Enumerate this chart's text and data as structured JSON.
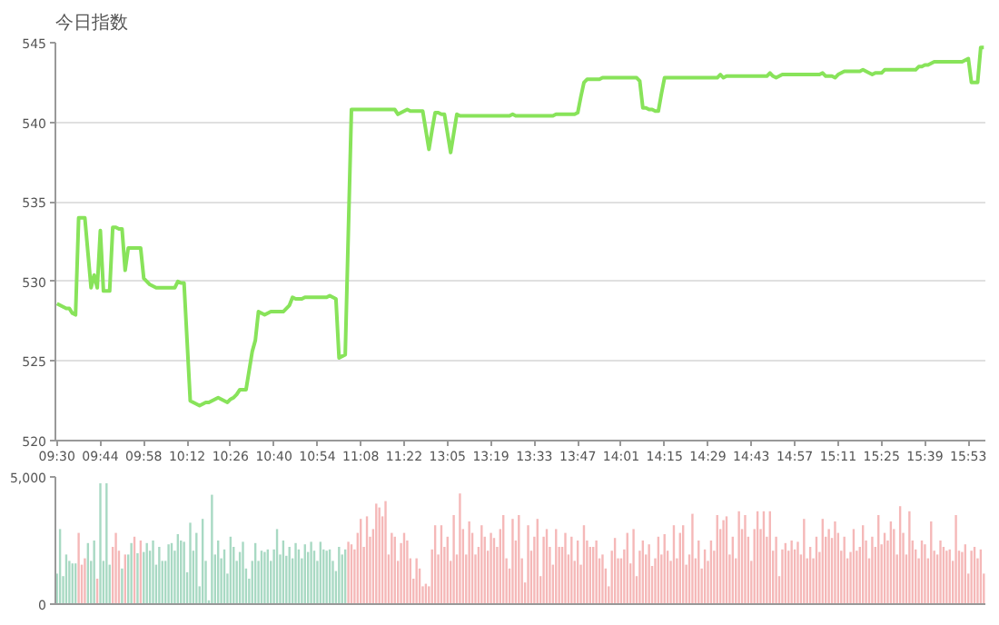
{
  "chart_data": [
    {
      "type": "line",
      "ylabel": "今日指数",
      "grid": "y",
      "categories": [
        "09:30",
        null,
        null,
        null,
        null,
        null,
        null,
        null,
        null,
        null,
        null,
        null,
        null,
        null,
        "09:44",
        null,
        null,
        null,
        null,
        null,
        null,
        null,
        null,
        null,
        null,
        null,
        null,
        null,
        "09:58",
        null,
        null,
        null,
        null,
        null,
        null,
        null,
        null,
        null,
        null,
        null,
        null,
        null,
        "10:12",
        null,
        null,
        null,
        null,
        null,
        null,
        null,
        null,
        null,
        null,
        null,
        null,
        null,
        "10:26",
        null,
        null,
        null,
        null,
        null,
        null,
        null,
        null,
        null,
        null,
        null,
        null,
        null,
        "10:40",
        null,
        null,
        null,
        null,
        null,
        null,
        null,
        null,
        null,
        null,
        null,
        null,
        null,
        "10:54",
        null,
        null,
        null,
        null,
        null,
        null,
        null,
        null,
        null,
        null,
        null,
        null,
        null,
        "11:08",
        null,
        null,
        null,
        null,
        null,
        null,
        null,
        null,
        null,
        null,
        null,
        null,
        null,
        "11:22",
        null,
        null,
        null,
        null,
        null,
        null,
        null,
        null,
        null,
        null,
        null,
        null,
        null,
        "13:05",
        null,
        null,
        null,
        null,
        null,
        null,
        null,
        null,
        null,
        null,
        null,
        null,
        null,
        "13:19",
        null,
        null,
        null,
        null,
        null,
        null,
        null,
        null,
        null,
        null,
        null,
        null,
        null,
        "13:33",
        null,
        null,
        null,
        null,
        null,
        null,
        null,
        null,
        null,
        null,
        null,
        null,
        null,
        "13:47",
        null,
        null,
        null,
        null,
        null,
        null,
        null,
        null,
        null,
        null,
        null,
        null,
        null,
        "14:01",
        null,
        null,
        null,
        null,
        null,
        null,
        null,
        null,
        null,
        null,
        null,
        null,
        null,
        "14:15",
        null,
        null,
        null,
        null,
        null,
        null,
        null,
        null,
        null,
        null,
        null,
        null,
        null,
        "14:29",
        null,
        null,
        null,
        null,
        null,
        null,
        null,
        null,
        null,
        null,
        null,
        null,
        null,
        "14:43",
        null,
        null,
        null,
        null,
        null,
        null,
        null,
        null,
        null,
        null,
        null,
        null,
        null,
        "14:57",
        null,
        null,
        null,
        null,
        null,
        null,
        null,
        null,
        null,
        null,
        null,
        null,
        null,
        "15:11",
        null,
        null,
        null,
        null,
        null,
        null,
        null,
        null,
        null,
        null,
        null,
        null,
        null,
        "15:25",
        null,
        null,
        null,
        null,
        null,
        null,
        null,
        null,
        null,
        null,
        null,
        null,
        null,
        "15:39",
        null,
        null,
        null,
        null,
        null,
        null,
        null,
        null,
        null,
        null,
        null,
        null,
        null,
        "15:53",
        null,
        null,
        null,
        null,
        null
      ],
      "series": [
        {
          "color": "#88e35a",
          "values": [
            528.6,
            528.5,
            528.4,
            528.3,
            528.3,
            528.0,
            527.9,
            534.0,
            534.0,
            534.0,
            531.8,
            529.6,
            530.4,
            529.6,
            533.2,
            529.4,
            529.4,
            529.4,
            533.4,
            533.4,
            533.3,
            533.3,
            530.7,
            532.1,
            532.1,
            532.1,
            532.1,
            532.1,
            530.2,
            530.0,
            529.8,
            529.7,
            529.6,
            529.6,
            529.6,
            529.6,
            529.6,
            529.6,
            529.6,
            530.0,
            529.9,
            529.9,
            526.2,
            522.5,
            522.4,
            522.3,
            522.2,
            522.3,
            522.4,
            522.4,
            522.5,
            522.6,
            522.7,
            522.6,
            522.5,
            522.4,
            522.6,
            522.7,
            522.9,
            523.2,
            523.2,
            523.2,
            524.4,
            525.6,
            526.3,
            528.1,
            528.0,
            527.9,
            528.0,
            528.1,
            528.1,
            528.1,
            528.1,
            528.1,
            528.3,
            528.5,
            529.0,
            528.9,
            528.9,
            528.9,
            529.0,
            529.0,
            529.0,
            529.0,
            529.0,
            529.0,
            529.0,
            529.0,
            529.1,
            529.0,
            528.9,
            525.2,
            525.3,
            525.4,
            533.1,
            540.8,
            540.8,
            540.8,
            540.8,
            540.8,
            540.8,
            540.8,
            540.8,
            540.8,
            540.8,
            540.8,
            540.8,
            540.8,
            540.8,
            540.8,
            540.5,
            540.6,
            540.7,
            540.8,
            540.7,
            540.7,
            540.7,
            540.7,
            540.7,
            539.5,
            538.3,
            539.5,
            540.6,
            540.6,
            540.5,
            540.5,
            539.3,
            538.1,
            539.3,
            540.5,
            540.4,
            540.4,
            540.4,
            540.4,
            540.4,
            540.4,
            540.4,
            540.4,
            540.4,
            540.4,
            540.4,
            540.4,
            540.4,
            540.4,
            540.4,
            540.4,
            540.4,
            540.5,
            540.4,
            540.4,
            540.4,
            540.4,
            540.4,
            540.4,
            540.4,
            540.4,
            540.4,
            540.4,
            540.4,
            540.4,
            540.4,
            540.5,
            540.5,
            540.5,
            540.5,
            540.5,
            540.5,
            540.5,
            540.6,
            541.6,
            542.5,
            542.7,
            542.7,
            542.7,
            542.7,
            542.7,
            542.8,
            542.8,
            542.8,
            542.8,
            542.8,
            542.8,
            542.8,
            542.8,
            542.8,
            542.8,
            542.8,
            542.8,
            542.6,
            540.9,
            540.9,
            540.8,
            540.8,
            540.7,
            540.7,
            541.8,
            542.8,
            542.8,
            542.8,
            542.8,
            542.8,
            542.8,
            542.8,
            542.8,
            542.8,
            542.8,
            542.8,
            542.8,
            542.8,
            542.8,
            542.8,
            542.8,
            542.8,
            542.8,
            543.0,
            542.8,
            542.9,
            542.9,
            542.9,
            542.9,
            542.9,
            542.9,
            542.9,
            542.9,
            542.9,
            542.9,
            542.9,
            542.9,
            542.9,
            542.9,
            543.1,
            542.9,
            542.8,
            542.9,
            543.0,
            543.0,
            543.0,
            543.0,
            543.0,
            543.0,
            543.0,
            543.0,
            543.0,
            543.0,
            543.0,
            543.0,
            543.0,
            543.1,
            542.9,
            542.9,
            542.9,
            542.8,
            543.0,
            543.1,
            543.2,
            543.2,
            543.2,
            543.2,
            543.2,
            543.2,
            543.3,
            543.2,
            543.1,
            543.0,
            543.1,
            543.1,
            543.1,
            543.3,
            543.3,
            543.3,
            543.3,
            543.3,
            543.3,
            543.3,
            543.3,
            543.3,
            543.3,
            543.3,
            543.5,
            543.5,
            543.6,
            543.6,
            543.7,
            543.8,
            543.8,
            543.8,
            543.8,
            543.8,
            543.8,
            543.8,
            543.8,
            543.8,
            543.8,
            543.9,
            544.0,
            542.5,
            542.5,
            542.5,
            544.7,
            544.7
          ]
        }
      ],
      "ylim": [
        520,
        545
      ],
      "yticks": [
        520,
        525,
        530,
        535,
        540,
        545
      ]
    },
    {
      "type": "bar",
      "ylim": [
        0,
        5000
      ],
      "yticks": [
        0,
        {
          "value": 5000,
          "label": "5,000"
        }
      ],
      "categories": [
        null,
        null,
        null,
        null,
        null,
        null,
        null,
        null,
        null,
        null,
        null,
        null,
        null,
        null,
        null,
        null,
        null,
        null,
        null,
        null,
        null,
        null,
        null,
        null,
        null,
        null,
        null,
        null,
        null,
        null,
        null,
        null,
        null,
        null,
        null,
        null,
        null,
        null,
        null,
        null,
        null,
        null,
        null,
        null,
        null,
        null,
        null,
        null,
        null,
        null,
        null,
        null,
        null,
        null,
        null,
        null,
        null,
        null,
        null,
        null,
        null,
        null,
        null,
        null,
        null,
        null,
        null,
        null,
        null,
        null,
        null,
        null,
        null,
        null,
        null,
        null,
        null,
        null,
        null,
        null,
        null,
        null,
        null,
        null,
        null,
        null,
        null,
        null,
        null,
        null,
        null,
        null,
        null,
        null,
        null,
        null,
        null,
        null,
        null,
        null,
        null,
        null,
        null,
        null,
        null,
        null,
        null,
        null,
        null,
        null,
        null,
        null,
        null,
        null,
        null,
        null,
        null,
        null,
        null,
        null,
        null,
        null,
        null,
        null,
        null,
        null,
        null,
        null,
        null,
        null,
        null,
        null,
        null,
        null,
        null,
        null,
        null,
        null,
        null,
        null,
        null,
        null,
        null,
        null,
        null,
        null,
        null,
        null,
        null,
        null,
        null,
        null,
        null,
        null,
        null,
        null,
        null,
        null,
        null,
        null,
        null,
        null,
        null,
        null,
        null,
        null,
        null,
        null,
        null,
        null,
        null,
        null,
        null,
        null,
        null,
        null,
        null,
        null,
        null,
        null,
        null,
        null,
        null,
        null,
        null,
        null,
        null,
        null,
        null,
        null,
        null,
        null,
        null,
        null,
        null,
        null,
        null,
        null,
        null,
        null,
        null,
        null,
        null,
        null,
        null,
        null,
        null,
        null,
        null,
        null,
        null,
        null,
        null,
        null,
        null,
        null,
        null,
        null,
        null,
        null,
        null,
        null,
        null,
        null,
        null,
        null,
        null,
        null,
        null,
        null,
        null,
        null,
        null,
        null,
        null,
        null,
        null,
        null,
        null,
        null,
        null,
        null,
        null,
        null,
        null,
        null,
        null,
        null,
        null,
        null,
        null,
        null,
        null,
        null,
        null,
        null,
        null,
        null,
        null,
        null,
        null,
        null,
        null,
        null,
        null,
        null,
        null,
        null,
        null,
        null,
        null,
        null,
        null,
        null,
        null,
        null,
        null,
        null,
        null,
        null,
        null,
        null,
        null,
        null,
        null,
        null,
        null,
        null,
        null,
        null,
        null,
        null,
        null,
        null,
        null,
        null,
        null,
        null,
        null,
        null
      ],
      "values": [
        1200,
        2950,
        1100,
        1950,
        1700,
        1600,
        1600,
        2800,
        1550,
        1800,
        2400,
        1700,
        2500,
        1000,
        4750,
        1700,
        4750,
        1550,
        2250,
        2800,
        2100,
        1400,
        1950,
        1950,
        2400,
        2650,
        2000,
        2500,
        2050,
        2400,
        2100,
        2500,
        1550,
        2250,
        1700,
        1700,
        2350,
        2400,
        2100,
        2750,
        2500,
        2450,
        1250,
        3200,
        2100,
        2800,
        700,
        3350,
        1700,
        150,
        4300,
        1950,
        2500,
        1800,
        2150,
        1200,
        2650,
        2250,
        1700,
        2050,
        2450,
        1400,
        1000,
        1700,
        2400,
        1700,
        2100,
        2050,
        2150,
        1700,
        2150,
        2950,
        1950,
        2500,
        1900,
        2250,
        1800,
        2400,
        2150,
        1800,
        2350,
        2050,
        2450,
        2100,
        1700,
        2450,
        2150,
        2100,
        2150,
        1700,
        1300,
        2250,
        1950,
        2150,
        2450,
        2350,
        2150,
        2800,
        3350,
        2250,
        3450,
        2650,
        2950,
        3950,
        3800,
        3450,
        4050,
        1950,
        2800,
        2650,
        1700,
        2400,
        2800,
        2500,
        1800,
        1000,
        1800,
        1400,
        700,
        800,
        700,
        2150,
        3100,
        1950,
        3100,
        2250,
        2650,
        1700,
        3500,
        1950,
        4350,
        2950,
        1950,
        3250,
        2800,
        1950,
        2250,
        3100,
        2650,
        2100,
        2800,
        2600,
        2250,
        2950,
        3500,
        1800,
        1400,
        3350,
        2500,
        3500,
        1800,
        850,
        3100,
        2100,
        2650,
        3350,
        1100,
        2650,
        2950,
        2250,
        1550,
        2950,
        2250,
        2250,
        2800,
        1950,
        2650,
        1700,
        2500,
        1550,
        3100,
        2500,
        2250,
        2250,
        2500,
        1800,
        1950,
        1400,
        700,
        2100,
        2600,
        1800,
        1800,
        2150,
        2800,
        1600,
        2950,
        1100,
        2100,
        2500,
        1950,
        2350,
        1500,
        1800,
        2650,
        1950,
        2750,
        2100,
        1700,
        3100,
        1800,
        2800,
        3100,
        1550,
        1950,
        3550,
        1800,
        2500,
        1400,
        2150,
        1700,
        2500,
        2100,
        3500,
        2950,
        3300,
        3450,
        1950,
        2650,
        1800,
        3650,
        2950,
        3500,
        2650,
        1700,
        2950,
        3650,
        2950,
        3650,
        2650,
        3650,
        2100,
        2650,
        1100,
        2150,
        2400,
        2100,
        2500,
        2150,
        2450,
        1950,
        3350,
        1800,
        2250,
        1800,
        2650,
        2050,
        3350,
        2650,
        2950,
        2600,
        3250,
        2800,
        2100,
        2650,
        1800,
        2050,
        2950,
        2100,
        2250,
        3100,
        2500,
        1800,
        2650,
        2250,
        3500,
        2350,
        2800,
        2500,
        3250,
        2950,
        1950,
        3850,
        2800,
        1950,
        3650,
        2500,
        2150,
        1800,
        2500,
        2350,
        1800,
        3250,
        2100,
        1950,
        2500,
        2250,
        2100,
        2150,
        1700,
        3500,
        2100,
        2050,
        2350,
        1200,
        2100,
        2250,
        1800,
        2150,
        1200
      ],
      "colors": [
        "#a8d9c3",
        "#a8d9c3",
        "#a8d9c3",
        "#a8d9c3",
        "#a8d9c3",
        "#a8d9c3",
        "#a8d9c3",
        "#f5b8b8",
        "#f5b8b8",
        "#f5b8b8",
        "#a8d9c3",
        "#a8d9c3",
        "#a8d9c3",
        "#f5b8b8",
        "#a8d9c3",
        "#a8d9c3",
        "#a8d9c3",
        "#a8d9c3",
        "#f5b8b8",
        "#f5b8b8",
        "#f5b8b8",
        "#a8d9c3",
        "#f5b8b8",
        "#a8d9c3",
        "#a8d9c3",
        "#f5b8b8",
        "#a8d9c3",
        "#f5b8b8",
        "#a8d9c3",
        "#a8d9c3",
        "#a8d9c3",
        "#a8d9c3",
        "#a8d9c3",
        "#a8d9c3",
        "#a8d9c3",
        "#a8d9c3",
        "#a8d9c3",
        "#a8d9c3",
        "#a8d9c3",
        "#a8d9c3",
        "#a8d9c3",
        "#a8d9c3",
        "#a8d9c3",
        "#a8d9c3",
        "#a8d9c3",
        "#a8d9c3",
        "#a8d9c3",
        "#a8d9c3",
        "#a8d9c3",
        "#a8d9c3",
        "#a8d9c3",
        "#a8d9c3",
        "#a8d9c3",
        "#a8d9c3",
        "#a8d9c3",
        "#a8d9c3",
        "#a8d9c3",
        "#a8d9c3",
        "#a8d9c3",
        "#a8d9c3",
        "#a8d9c3",
        "#a8d9c3",
        "#a8d9c3",
        "#a8d9c3",
        "#a8d9c3",
        "#a8d9c3",
        "#a8d9c3",
        "#a8d9c3",
        "#a8d9c3",
        "#a8d9c3",
        "#a8d9c3",
        "#a8d9c3",
        "#a8d9c3",
        "#a8d9c3",
        "#a8d9c3",
        "#a8d9c3",
        "#a8d9c3",
        "#a8d9c3",
        "#a8d9c3",
        "#a8d9c3",
        "#a8d9c3",
        "#a8d9c3",
        "#a8d9c3",
        "#a8d9c3",
        "#a8d9c3",
        "#a8d9c3",
        "#a8d9c3",
        "#a8d9c3",
        "#a8d9c3",
        "#a8d9c3",
        "#a8d9c3",
        "#a8d9c3",
        "#a8d9c3",
        "#a8d9c3",
        "#f5b8b8",
        "#f5b8b8",
        "#f5b8b8",
        "#f5b8b8",
        "#f5b8b8",
        "#f5b8b8",
        "#f5b8b8",
        "#f5b8b8",
        "#f5b8b8",
        "#f5b8b8",
        "#f5b8b8",
        "#f5b8b8",
        "#f5b8b8",
        "#f5b8b8",
        "#f5b8b8",
        "#f5b8b8",
        "#f5b8b8",
        "#f5b8b8",
        "#f5b8b8",
        "#f5b8b8",
        "#f5b8b8",
        "#f5b8b8",
        "#f5b8b8",
        "#f5b8b8",
        "#f5b8b8",
        "#f5b8b8",
        "#f5b8b8",
        "#f5b8b8",
        "#f5b8b8",
        "#f5b8b8",
        "#f5b8b8",
        "#f5b8b8",
        "#f5b8b8",
        "#f5b8b8",
        "#f5b8b8",
        "#f5b8b8",
        "#f5b8b8",
        "#f5b8b8",
        "#f5b8b8",
        "#f5b8b8",
        "#f5b8b8",
        "#f5b8b8",
        "#f5b8b8",
        "#f5b8b8",
        "#f5b8b8",
        "#f5b8b8",
        "#f5b8b8",
        "#f5b8b8",
        "#f5b8b8",
        "#f5b8b8",
        "#f5b8b8",
        "#f5b8b8",
        "#f5b8b8",
        "#f5b8b8",
        "#f5b8b8",
        "#f5b8b8",
        "#f5b8b8",
        "#f5b8b8",
        "#f5b8b8",
        "#f5b8b8",
        "#f5b8b8",
        "#f5b8b8",
        "#f5b8b8",
        "#f5b8b8",
        "#f5b8b8",
        "#f5b8b8",
        "#f5b8b8",
        "#f5b8b8",
        "#f5b8b8",
        "#f5b8b8",
        "#f5b8b8",
        "#f5b8b8",
        "#f5b8b8",
        "#f5b8b8",
        "#f5b8b8",
        "#f5b8b8",
        "#f5b8b8",
        "#f5b8b8",
        "#f5b8b8",
        "#f5b8b8",
        "#f5b8b8",
        "#f5b8b8",
        "#f5b8b8",
        "#f5b8b8",
        "#f5b8b8",
        "#f5b8b8",
        "#f5b8b8",
        "#f5b8b8",
        "#f5b8b8",
        "#f5b8b8",
        "#f5b8b8",
        "#f5b8b8",
        "#f5b8b8",
        "#f5b8b8",
        "#f5b8b8",
        "#f5b8b8",
        "#f5b8b8",
        "#f5b8b8",
        "#f5b8b8",
        "#f5b8b8",
        "#f5b8b8",
        "#f5b8b8",
        "#f5b8b8",
        "#f5b8b8",
        "#f5b8b8",
        "#f5b8b8",
        "#f5b8b8",
        "#f5b8b8",
        "#f5b8b8",
        "#f5b8b8",
        "#f5b8b8",
        "#f5b8b8",
        "#f5b8b8",
        "#f5b8b8",
        "#f5b8b8",
        "#f5b8b8",
        "#f5b8b8",
        "#f5b8b8",
        "#f5b8b8",
        "#f5b8b8",
        "#f5b8b8",
        "#f5b8b8",
        "#f5b8b8",
        "#f5b8b8",
        "#f5b8b8",
        "#f5b8b8",
        "#f5b8b8",
        "#f5b8b8",
        "#f5b8b8",
        "#f5b8b8",
        "#f5b8b8",
        "#f5b8b8",
        "#f5b8b8",
        "#f5b8b8",
        "#f5b8b8",
        "#f5b8b8",
        "#f5b8b8",
        "#f5b8b8",
        "#f5b8b8",
        "#f5b8b8",
        "#f5b8b8",
        "#f5b8b8",
        "#f5b8b8",
        "#f5b8b8",
        "#f5b8b8",
        "#f5b8b8",
        "#f5b8b8",
        "#f5b8b8",
        "#f5b8b8",
        "#f5b8b8",
        "#f5b8b8",
        "#f5b8b8",
        "#f5b8b8",
        "#f5b8b8",
        "#f5b8b8",
        "#f5b8b8",
        "#f5b8b8",
        "#f5b8b8",
        "#f5b8b8",
        "#f5b8b8",
        "#f5b8b8",
        "#f5b8b8",
        "#f5b8b8",
        "#f5b8b8",
        "#f5b8b8",
        "#f5b8b8",
        "#f5b8b8",
        "#f5b8b8",
        "#f5b8b8",
        "#f5b8b8",
        "#f5b8b8",
        "#f5b8b8",
        "#f5b8b8",
        "#f5b8b8",
        "#f5b8b8",
        "#f5b8b8",
        "#f5b8b8",
        "#f5b8b8",
        "#f5b8b8",
        "#f5b8b8",
        "#f5b8b8",
        "#f5b8b8",
        "#f5b8b8",
        "#f5b8b8",
        "#f5b8b8",
        "#f5b8b8",
        "#f5b8b8",
        "#f5b8b8",
        "#f5b8b8",
        "#f5b8b8",
        "#f5b8b8",
        "#f5b8b8",
        "#f5b8b8",
        "#f5b8b8",
        "#f5b8b8",
        "#f5b8b8",
        "#f5b8b8",
        "#f5b8b8",
        "#f5b8b8",
        "#f5b8b8",
        "#f5b8b8",
        "#f5b8b8",
        "#f5b8b8",
        "#f5b8b8",
        "#f5b8b8",
        "#f5b8b8"
      ]
    }
  ]
}
